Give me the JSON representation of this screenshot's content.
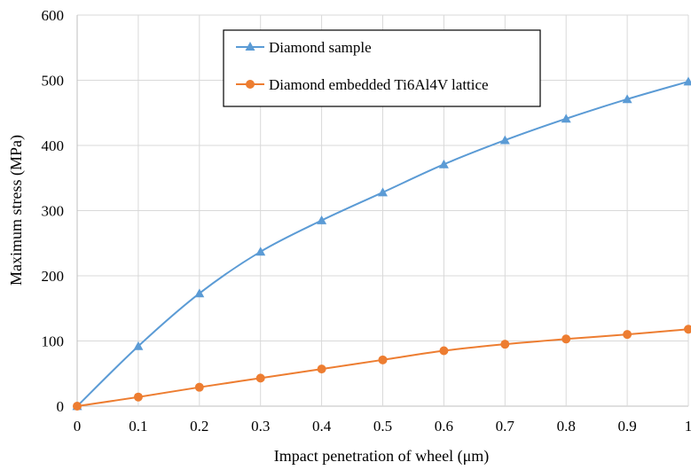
{
  "chart_data": {
    "type": "line",
    "title": "",
    "xlabel": "Impact penetration of wheel (μm)",
    "ylabel": "Maximum stress (MPa)",
    "x": [
      0,
      0.1,
      0.2,
      0.3,
      0.4,
      0.5,
      0.6,
      0.7,
      0.8,
      0.9,
      1
    ],
    "x_tick_labels": [
      "0",
      "0.1",
      "0.2",
      "0.3",
      "0.4",
      "0.5",
      "0.6",
      "0.7",
      "0.8",
      "0.9",
      "1"
    ],
    "y_tick_labels": [
      "0",
      "100",
      "200",
      "300",
      "400",
      "500",
      "600"
    ],
    "xlim": [
      0,
      1
    ],
    "ylim": [
      0,
      600
    ],
    "grid": true,
    "legend_placement": "top-center",
    "series": [
      {
        "name": "Diamond sample",
        "marker": "triangle",
        "color": "#5B9BD5",
        "values": [
          0,
          92,
          173,
          237,
          285,
          328,
          371,
          408,
          441,
          471,
          498
        ]
      },
      {
        "name": "Diamond embedded Ti6Al4V lattice",
        "marker": "circle",
        "color": "#ED7D31",
        "values": [
          0,
          14,
          29,
          43,
          57,
          71,
          85,
          95,
          103,
          110,
          118
        ]
      }
    ]
  }
}
